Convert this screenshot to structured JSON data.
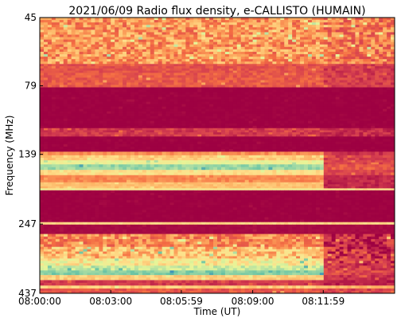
{
  "chart_data": {
    "type": "heatmap",
    "title": "2021/06/09  Radio flux density, e-CALLISTO (HUMAIN)",
    "xlabel": "Time (UT)",
    "ylabel": "Frequency (MHz)",
    "x_tick_labels": [
      "08:00:00",
      "08:03:00",
      "08:05:59",
      "08:09:00",
      "08:11:59"
    ],
    "x_tick_values_seconds_after_start": [
      0,
      180,
      359,
      540,
      719
    ],
    "x_range_seconds_after_start": [
      0,
      900
    ],
    "y_tick_labels": [
      "45",
      "79",
      "139",
      "247",
      "437"
    ],
    "y_tick_values_mhz": [
      45,
      79,
      139,
      247,
      437
    ],
    "y_range_mhz": [
      45,
      437
    ],
    "y_scale": "log",
    "y_inverted": true,
    "grid": false,
    "colormap": "Spectral",
    "colormap_stops": [
      "#9e0142",
      "#d53e4f",
      "#f46d43",
      "#fdae61",
      "#fee08b",
      "#e6f598",
      "#abdda4",
      "#66c2a5",
      "#3288bd"
    ],
    "data_change_time_seconds_after_start": 719,
    "frequency_bands": [
      {
        "f_min": 45,
        "f_max": 66,
        "level_before": 0.33,
        "level_after": 0.28,
        "noise": 0.14
      },
      {
        "f_min": 66,
        "f_max": 71,
        "level_before": 0.18,
        "level_after": 0.12,
        "noise": 0.05
      },
      {
        "f_min": 71,
        "f_max": 80,
        "level_before": 0.2,
        "level_after": 0.13,
        "noise": 0.06
      },
      {
        "f_min": 80,
        "f_max": 112,
        "level_before": 0.0,
        "level_after": 0.0,
        "noise": 0.01
      },
      {
        "f_min": 112,
        "f_max": 120,
        "level_before": 0.12,
        "level_after": 0.09,
        "noise": 0.05
      },
      {
        "f_min": 120,
        "f_max": 136,
        "level_before": 0.0,
        "level_after": 0.0,
        "noise": 0.01
      },
      {
        "f_min": 136,
        "f_max": 140,
        "level_before": 0.32,
        "level_after": 0.1,
        "noise": 0.05
      },
      {
        "f_min": 140,
        "f_max": 146,
        "level_before": 0.45,
        "level_after": 0.14,
        "noise": 0.06
      },
      {
        "f_min": 146,
        "f_max": 151,
        "level_before": 0.6,
        "level_after": 0.15,
        "noise": 0.05
      },
      {
        "f_min": 151,
        "f_max": 158,
        "level_before": 0.78,
        "level_after": 0.2,
        "noise": 0.06
      },
      {
        "f_min": 158,
        "f_max": 165,
        "level_before": 0.5,
        "level_after": 0.15,
        "noise": 0.05
      },
      {
        "f_min": 165,
        "f_max": 175,
        "level_before": 0.3,
        "level_after": 0.08,
        "noise": 0.04
      },
      {
        "f_min": 175,
        "f_max": 184,
        "level_before": 0.42,
        "level_after": 0.07,
        "noise": 0.04
      },
      {
        "f_min": 184,
        "f_max": 187,
        "level_before": 0.55,
        "level_after": 0.5,
        "noise": 0.03
      },
      {
        "f_min": 187,
        "f_max": 243,
        "level_before": 0.0,
        "level_after": 0.0,
        "noise": 0.01
      },
      {
        "f_min": 243,
        "f_max": 248,
        "level_before": 0.48,
        "level_after": 0.48,
        "noise": 0.03
      },
      {
        "f_min": 248,
        "f_max": 268,
        "level_before": 0.02,
        "level_after": 0.02,
        "noise": 0.01
      },
      {
        "f_min": 268,
        "f_max": 298,
        "level_before": 0.3,
        "level_after": 0.08,
        "noise": 0.12
      },
      {
        "f_min": 298,
        "f_max": 328,
        "level_before": 0.42,
        "level_after": 0.1,
        "noise": 0.15
      },
      {
        "f_min": 328,
        "f_max": 348,
        "level_before": 0.55,
        "level_after": 0.12,
        "noise": 0.12
      },
      {
        "f_min": 348,
        "f_max": 362,
        "level_before": 0.68,
        "level_after": 0.12,
        "noise": 0.08
      },
      {
        "f_min": 362,
        "f_max": 376,
        "level_before": 0.82,
        "level_after": 0.15,
        "noise": 0.06
      },
      {
        "f_min": 376,
        "f_max": 392,
        "level_before": 0.45,
        "level_after": 0.1,
        "noise": 0.05
      },
      {
        "f_min": 392,
        "f_max": 410,
        "level_before": 0.12,
        "level_after": 0.06,
        "noise": 0.04
      },
      {
        "f_min": 410,
        "f_max": 420,
        "level_before": 0.45,
        "level_after": 0.4,
        "noise": 0.05
      },
      {
        "f_min": 420,
        "f_max": 437,
        "level_before": 0.2,
        "level_after": 0.15,
        "noise": 0.06
      }
    ]
  }
}
